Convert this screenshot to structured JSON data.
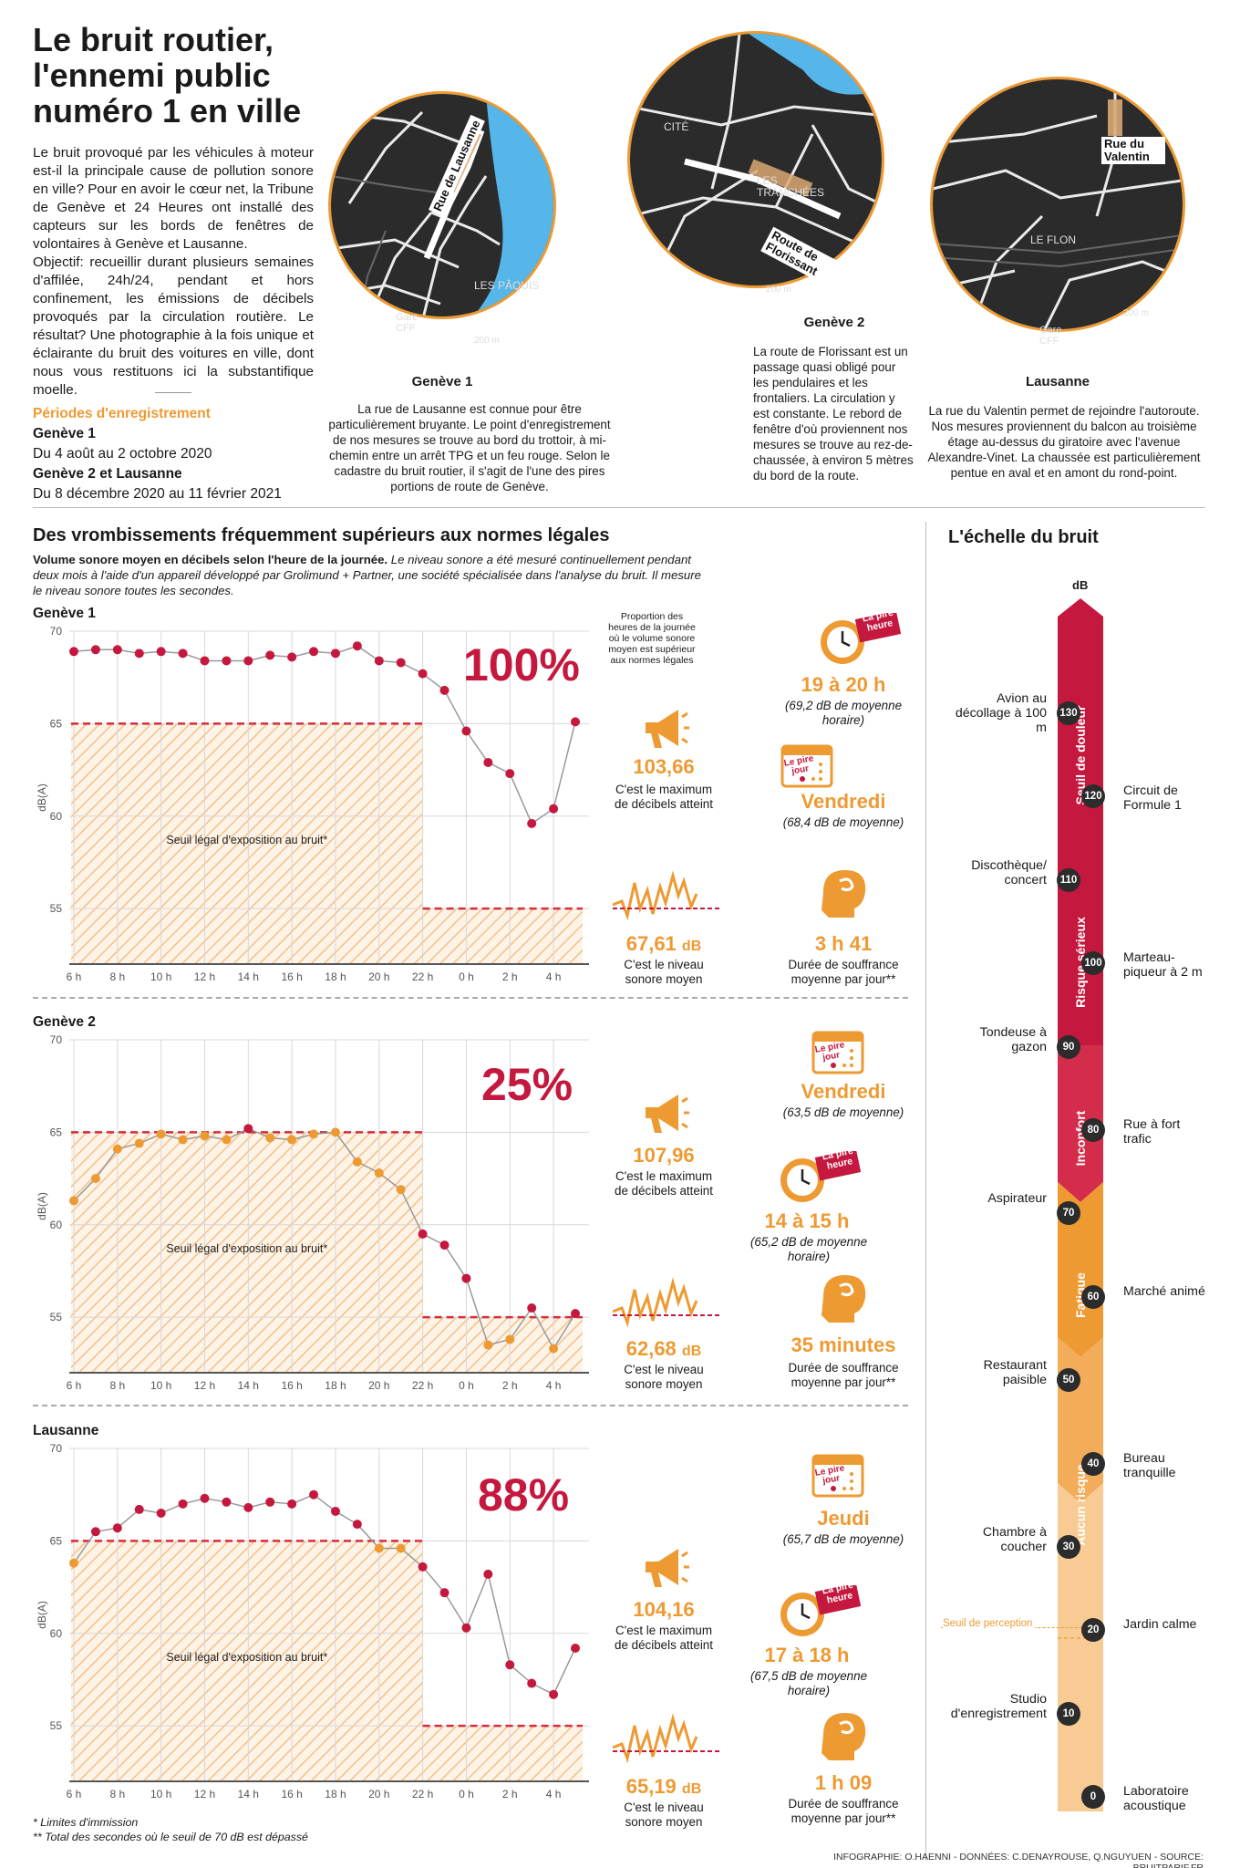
{
  "header": {
    "title": "Le bruit routier, l'ennemi public numéro 1 en ville",
    "intro_p1": "Le bruit provoqué par les véhicules à moteur est-il la principale cause de pollution sonore en ville? Pour en avoir le cœur net, la Tribune de Genève et 24 Heures ont installé des capteurs sur les bords de fenêtres de volontaires à Genève et Lausanne.",
    "intro_p2": "Objectif: recueillir durant plusieurs semaines d'affilée, 24h/24, pendant et hors confinement, les émissions de décibels provoqués par la circulation routière. Le résultat? Une photographie à la fois unique et éclairante du bruit des voitures en ville, dont nous vous restituons ici la substantifique moelle.",
    "periods_title": "Périodes d'enregistrement",
    "period1_name": "Genève 1",
    "period1_dates": "Du 4 août au 2 octobre 2020",
    "period2_name": "Genève 2 et Lausanne",
    "period2_dates": "Du 8 décembre 2020 au 11 février 2021"
  },
  "maps": [
    {
      "title": "Genève 1",
      "street": "Rue de Lausanne",
      "labels": [
        "LES PÂQUIS",
        "Gare CFF"
      ],
      "scale": "200 m",
      "text": "La rue de Lausanne est connue pour être particulièrement bruyante. Le point d'enregistrement de nos mesures se trouve au bord du trottoir, à mi-chemin entre un arrêt TPG et un feu rouge. Selon le cadastre du bruit routier, il s'agit de l'une des pires portions de route de Genève."
    },
    {
      "title": "Genève 2",
      "street": "Route de Florissant",
      "labels": [
        "CITÉ",
        "LES TRANCHÉES"
      ],
      "scale": "200 m",
      "text": "La route de Florissant est un passage quasi obligé pour les pendulaires et les frontaliers. La circulation y est constante. Le rebord de fenêtre d'où proviennent nos mesures se trouve au rez-de-chaussée, à environ 5 mètres du bord de la route."
    },
    {
      "title": "Lausanne",
      "street": "Rue du Valentin",
      "labels": [
        "LE FLON",
        "Gare CFF"
      ],
      "scale": "200 m",
      "text": "La rue du Valentin permet de rejoindre l'autoroute. Nos mesures proviennent du balcon au troisième étage au-dessus du giratoire avec l'avenue Alexandre-Vinet. La chaussée est particulièrement pentue en aval et en amont du rond-point."
    }
  ],
  "section": {
    "title": "Des vrombissements fréquemment supérieurs aux normes légales",
    "subtitle_bold": "Volume sonore moyen en décibels selon l'heure de la journée.",
    "subtitle_rest": "Le niveau sonore a été mesuré continuellement pendant deux mois à l'aide d'un appareil développé par Grolimund + Partner, une société spécialisée dans l'analyse du bruit. Il mesure le niveau sonore toutes les secondes.",
    "annotation": "Proportion des heures de la journée où le volume sonore moyen est supérieur aux normes légales",
    "threshold_label": "Seuil légal d'exposition au bruit*"
  },
  "chart_data": [
    {
      "type": "line",
      "name": "Genève 1",
      "ylabel": "dB(A)",
      "ylim": [
        52,
        70
      ],
      "yticks": [
        55,
        60,
        65,
        70
      ],
      "xticks": [
        "6 h",
        "8 h",
        "10 h",
        "12 h",
        "14 h",
        "16 h",
        "18 h",
        "20 h",
        "22 h",
        "0 h",
        "2 h",
        "4 h"
      ],
      "hours": [
        6,
        7,
        8,
        9,
        10,
        11,
        12,
        13,
        14,
        15,
        16,
        17,
        18,
        19,
        20,
        21,
        22,
        23,
        24,
        25,
        26,
        27,
        28,
        29
      ],
      "values": [
        68.9,
        69.0,
        69.0,
        68.8,
        68.9,
        68.8,
        68.4,
        68.4,
        68.4,
        68.7,
        68.6,
        68.9,
        68.8,
        69.2,
        68.4,
        68.3,
        67.7,
        66.8,
        64.6,
        62.9,
        62.3,
        59.6,
        60.4,
        65.1
      ],
      "threshold_day": 65,
      "threshold_night": 55,
      "color": "#c5183e",
      "percentage": "100%",
      "max_db": "103,66",
      "max_lbl": "C'est le maximum de décibels atteint",
      "mean_db": "67,61",
      "mean_unit": "dB",
      "mean_lbl": "C'est le niveau sonore moyen",
      "worst_hour": "19 à 20 h",
      "worst_hour_note": "(69,2 dB de moyenne horaire)",
      "worst_day": "Vendredi",
      "worst_day_note": "(68,4 dB de moyenne)",
      "suffering": "3 h 41",
      "suffering_lbl": "Durée de souffrance moyenne par jour**"
    },
    {
      "type": "line",
      "name": "Genève 2",
      "ylabel": "dB(A)",
      "ylim": [
        52,
        70
      ],
      "yticks": [
        55,
        60,
        65,
        70
      ],
      "xticks": [
        "6 h",
        "8 h",
        "10 h",
        "12 h",
        "14 h",
        "16 h",
        "18 h",
        "20 h",
        "22 h",
        "0 h",
        "2 h",
        "4 h"
      ],
      "hours": [
        6,
        7,
        8,
        9,
        10,
        11,
        12,
        13,
        14,
        15,
        16,
        17,
        18,
        19,
        20,
        21,
        22,
        23,
        24,
        25,
        26,
        27,
        28,
        29
      ],
      "values": [
        61.3,
        62.5,
        64.1,
        64.4,
        64.9,
        64.6,
        64.8,
        64.6,
        65.2,
        64.7,
        64.6,
        64.9,
        65.0,
        63.4,
        62.8,
        61.9,
        59.5,
        58.9,
        57.1,
        53.5,
        53.8,
        55.5,
        53.3,
        55.2
      ],
      "threshold_day": 65,
      "threshold_night": 55,
      "color": "#ee9a33",
      "percentage": "25%",
      "max_db": "107,96",
      "max_lbl": "C'est le maximum de décibels atteint",
      "mean_db": "62,68",
      "mean_unit": "dB",
      "mean_lbl": "C'est le niveau sonore moyen",
      "worst_hour": "14 à 15 h",
      "worst_hour_note": "(65,2 dB de moyenne horaire)",
      "worst_day": "Vendredi",
      "worst_day_note": "(63,5 dB de moyenne)",
      "suffering": "35 minutes",
      "suffering_lbl": "Durée de souffrance moyenne par jour**"
    },
    {
      "type": "line",
      "name": "Lausanne",
      "ylabel": "dB(A)",
      "ylim": [
        52,
        70
      ],
      "yticks": [
        55,
        60,
        65,
        70
      ],
      "xticks": [
        "6 h",
        "8 h",
        "10 h",
        "12 h",
        "14 h",
        "16 h",
        "18 h",
        "20 h",
        "22 h",
        "0 h",
        "2 h",
        "4 h"
      ],
      "hours": [
        6,
        7,
        8,
        9,
        10,
        11,
        12,
        13,
        14,
        15,
        16,
        17,
        18,
        19,
        20,
        21,
        22,
        23,
        24,
        25,
        26,
        27,
        28,
        29
      ],
      "values": [
        63.8,
        65.5,
        65.7,
        66.7,
        66.5,
        67.0,
        67.3,
        67.1,
        66.8,
        67.1,
        67.0,
        67.5,
        66.6,
        65.9,
        64.6,
        64.6,
        63.6,
        62.2,
        60.3,
        63.2,
        58.3,
        57.3,
        56.7,
        59.2
      ],
      "threshold_day": 65,
      "threshold_night": 55,
      "color": "#c5183e",
      "percentage": "88%",
      "max_db": "104,16",
      "max_lbl": "C'est le maximum de décibels atteint",
      "mean_db": "65,19",
      "mean_unit": "dB",
      "mean_lbl": "C'est le niveau sonore moyen",
      "worst_hour": "17 à 18 h",
      "worst_hour_note": "(67,5 dB de moyenne horaire)",
      "worst_day": "Jeudi",
      "worst_day_note": "(65,7 dB de moyenne)",
      "suffering": "1 h 09",
      "suffering_lbl": "Durée de souffrance moyenne par jour**"
    }
  ],
  "badges": {
    "worst_hour": "La pire heure",
    "worst_day": "Le pire jour"
  },
  "scale": {
    "title": "L'échelle du bruit",
    "unit": "dB",
    "zones": [
      "Seuil de douleur",
      "Risque sérieux",
      "Inconfort",
      "Fatigue",
      "Aucun risque"
    ],
    "perception": "Seuil de perception",
    "items": [
      {
        "value": "130",
        "label": "Avion au décollage à 100 m",
        "side": "left"
      },
      {
        "value": "120",
        "label": "Circuit de Formule 1",
        "side": "right"
      },
      {
        "value": "110",
        "label": "Discothèque/ concert",
        "side": "left"
      },
      {
        "value": "100",
        "label": "Marteau-piqueur à 2 m",
        "side": "right"
      },
      {
        "value": "90",
        "label": "Tondeuse à gazon",
        "side": "left"
      },
      {
        "value": "80",
        "label": "Rue à fort trafic",
        "side": "right"
      },
      {
        "value": "70",
        "label": "Aspirateur",
        "side": "left"
      },
      {
        "value": "60",
        "label": "Marché animé",
        "side": "right"
      },
      {
        "value": "50",
        "label": "Restaurant paisible",
        "side": "left"
      },
      {
        "value": "40",
        "label": "Bureau tranquille",
        "side": "right"
      },
      {
        "value": "30",
        "label": "Chambre à coucher",
        "side": "left"
      },
      {
        "value": "20",
        "label": "Jardin calme",
        "side": "right"
      },
      {
        "value": "10",
        "label": "Studio d'enregistrement",
        "side": "left"
      },
      {
        "value": "0",
        "label": "Laboratoire acoustique",
        "side": "right"
      }
    ]
  },
  "footnotes": {
    "f1": "* Limites d'immission",
    "f2": "** Total des secondes où le seuil de 70 dB est dépassé",
    "credit": "INFOGRAPHIE: O.HAENNI - DONNÉES: C.DENAYROUSE, Q.NGUYUEN - SOURCE: BRUITPARIF.FR"
  }
}
